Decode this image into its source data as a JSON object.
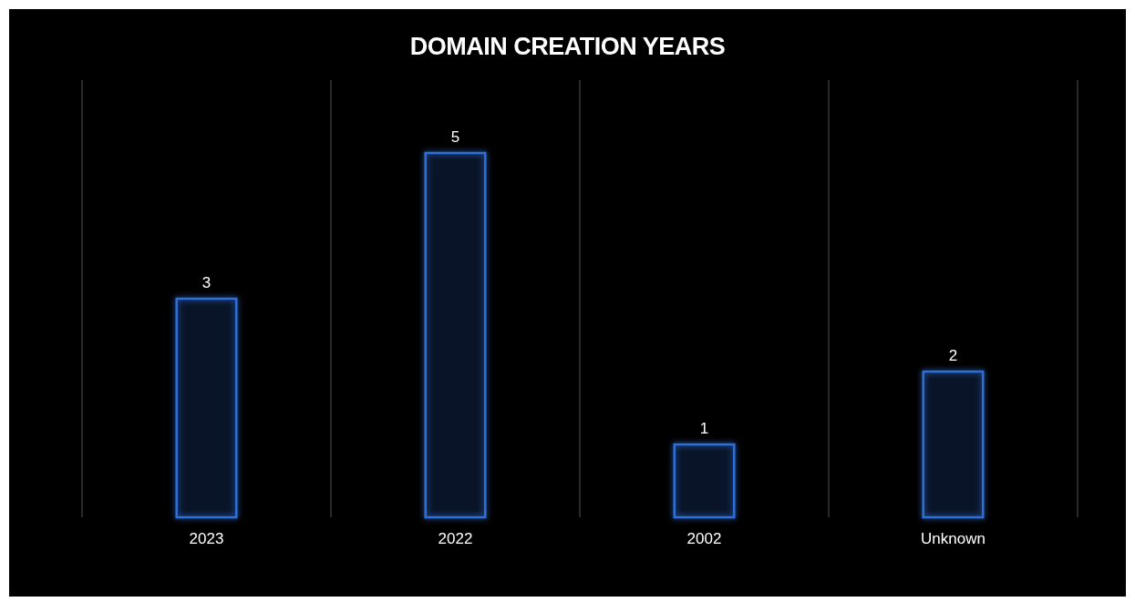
{
  "chart_data": {
    "type": "bar",
    "title": "DOMAIN CREATION YEARS",
    "categories": [
      "2023",
      "2022",
      "2002",
      "Unknown"
    ],
    "values": [
      3,
      5,
      1,
      2
    ],
    "color": "#2f6fd6",
    "ylim": [
      0,
      6
    ],
    "tick_labels": "x",
    "grid": "x",
    "data_labels": true
  }
}
